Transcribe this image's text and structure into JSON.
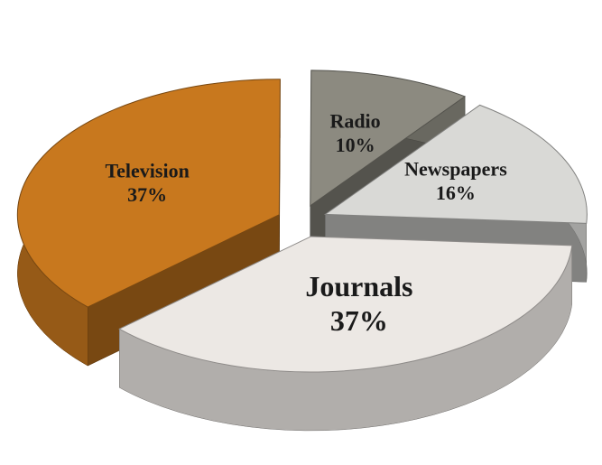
{
  "chart_data": {
    "type": "pie",
    "categories": [
      "Television",
      "Radio",
      "Newspapers",
      "Journals"
    ],
    "values": [
      37,
      10,
      16,
      37
    ],
    "value_labels": [
      "37%",
      "10%",
      "16%",
      "37%"
    ],
    "colors": [
      "#c8781e",
      "#8c8a80",
      "#d9d9d6",
      "#ece8e4"
    ]
  }
}
